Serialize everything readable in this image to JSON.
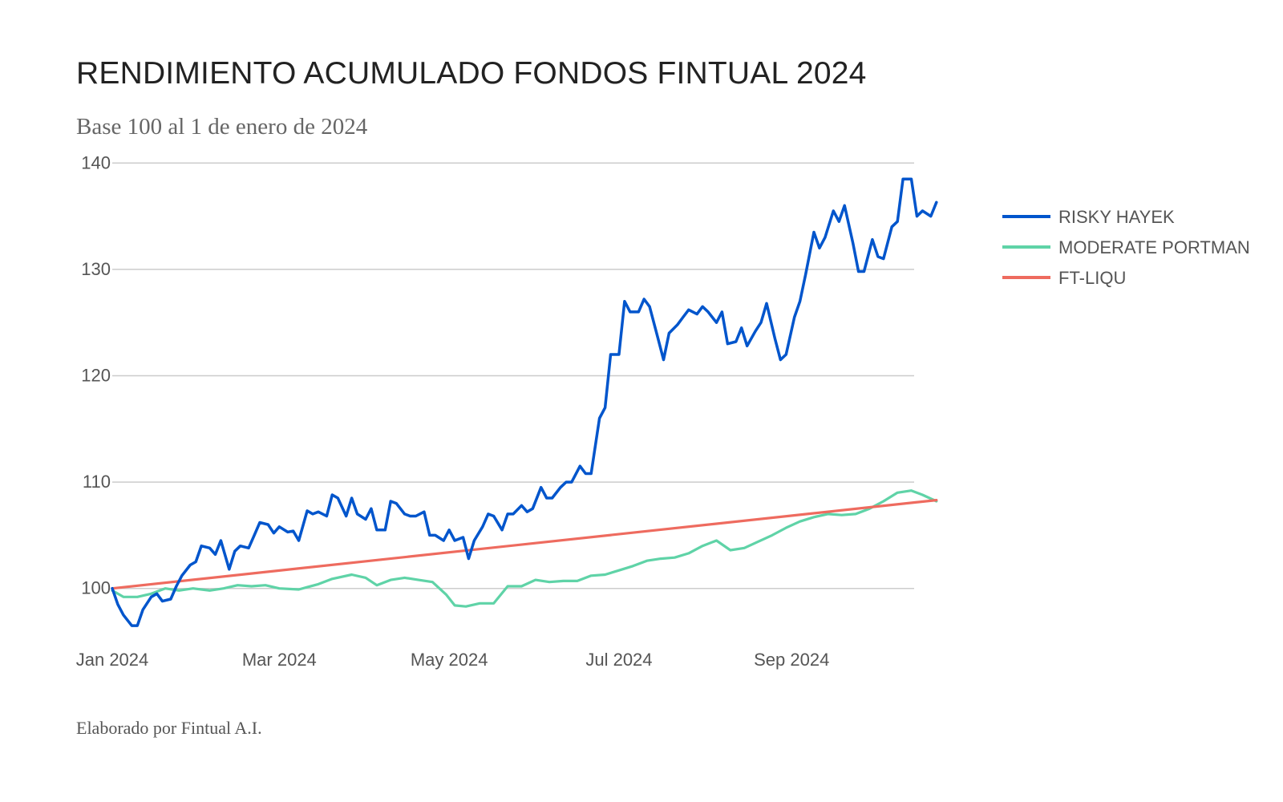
{
  "chart_data": {
    "type": "line",
    "title": "RENDIMIENTO ACUMULADO FONDOS FINTUAL 2024",
    "subtitle": "Base 100 al 1 de enero de 2024",
    "credit": "Elaborado por Fintual A.I.",
    "y_ticks": [
      100,
      110,
      120,
      130,
      140
    ],
    "ylim": [
      95,
      141
    ],
    "x_ticks": [
      {
        "date": "2024-01-01",
        "label": "Jan 2024"
      },
      {
        "date": "2024-03-01",
        "label": "Mar 2024"
      },
      {
        "date": "2024-05-01",
        "label": "May 2024"
      },
      {
        "date": "2024-07-01",
        "label": "Jul 2024"
      },
      {
        "date": "2024-09-01",
        "label": "Sep 2024"
      }
    ],
    "xlim": [
      "2024-01-01",
      "2024-10-15"
    ],
    "grid": true,
    "legend_position": "right",
    "series": [
      {
        "name": "RISKY HAYEK",
        "color": "#0055cc",
        "points": [
          [
            "2024-01-01",
            100.0
          ],
          [
            "2024-01-03",
            98.5
          ],
          [
            "2024-01-05",
            97.5
          ],
          [
            "2024-01-08",
            96.5
          ],
          [
            "2024-01-10",
            96.5
          ],
          [
            "2024-01-12",
            98.0
          ],
          [
            "2024-01-15",
            99.2
          ],
          [
            "2024-01-17",
            99.5
          ],
          [
            "2024-01-19",
            98.8
          ],
          [
            "2024-01-22",
            99.0
          ],
          [
            "2024-01-24",
            100.2
          ],
          [
            "2024-01-26",
            101.2
          ],
          [
            "2024-01-29",
            102.2
          ],
          [
            "2024-01-31",
            102.5
          ],
          [
            "2024-02-02",
            104.0
          ],
          [
            "2024-02-05",
            103.8
          ],
          [
            "2024-02-07",
            103.2
          ],
          [
            "2024-02-09",
            104.5
          ],
          [
            "2024-02-12",
            101.8
          ],
          [
            "2024-02-14",
            103.5
          ],
          [
            "2024-02-16",
            104.0
          ],
          [
            "2024-02-19",
            103.8
          ],
          [
            "2024-02-21",
            105.0
          ],
          [
            "2024-02-23",
            106.2
          ],
          [
            "2024-02-26",
            106.0
          ],
          [
            "2024-02-28",
            105.2
          ],
          [
            "2024-03-01",
            105.8
          ],
          [
            "2024-03-04",
            105.3
          ],
          [
            "2024-03-06",
            105.4
          ],
          [
            "2024-03-08",
            104.5
          ],
          [
            "2024-03-11",
            107.3
          ],
          [
            "2024-03-13",
            107.0
          ],
          [
            "2024-03-15",
            107.2
          ],
          [
            "2024-03-18",
            106.8
          ],
          [
            "2024-03-20",
            108.8
          ],
          [
            "2024-03-22",
            108.5
          ],
          [
            "2024-03-25",
            106.8
          ],
          [
            "2024-03-27",
            108.5
          ],
          [
            "2024-03-29",
            107.0
          ],
          [
            "2024-04-01",
            106.5
          ],
          [
            "2024-04-03",
            107.5
          ],
          [
            "2024-04-05",
            105.5
          ],
          [
            "2024-04-08",
            105.5
          ],
          [
            "2024-04-10",
            108.2
          ],
          [
            "2024-04-12",
            108.0
          ],
          [
            "2024-04-15",
            107.0
          ],
          [
            "2024-04-17",
            106.8
          ],
          [
            "2024-04-19",
            106.8
          ],
          [
            "2024-04-22",
            107.2
          ],
          [
            "2024-04-24",
            105.0
          ],
          [
            "2024-04-26",
            105.0
          ],
          [
            "2024-04-29",
            104.5
          ],
          [
            "2024-05-01",
            105.5
          ],
          [
            "2024-05-03",
            104.5
          ],
          [
            "2024-05-06",
            104.8
          ],
          [
            "2024-05-08",
            102.8
          ],
          [
            "2024-05-10",
            104.5
          ],
          [
            "2024-05-13",
            105.8
          ],
          [
            "2024-05-15",
            107.0
          ],
          [
            "2024-05-17",
            106.8
          ],
          [
            "2024-05-20",
            105.5
          ],
          [
            "2024-05-22",
            107.0
          ],
          [
            "2024-05-24",
            107.0
          ],
          [
            "2024-05-27",
            107.8
          ],
          [
            "2024-05-29",
            107.2
          ],
          [
            "2024-05-31",
            107.5
          ],
          [
            "2024-06-03",
            109.5
          ],
          [
            "2024-06-05",
            108.5
          ],
          [
            "2024-06-07",
            108.5
          ],
          [
            "2024-06-10",
            109.5
          ],
          [
            "2024-06-12",
            110.0
          ],
          [
            "2024-06-14",
            110.0
          ],
          [
            "2024-06-17",
            111.5
          ],
          [
            "2024-06-19",
            110.8
          ],
          [
            "2024-06-21",
            110.8
          ],
          [
            "2024-06-24",
            116.0
          ],
          [
            "2024-06-26",
            117.0
          ],
          [
            "2024-06-28",
            122.0
          ],
          [
            "2024-07-01",
            122.0
          ],
          [
            "2024-07-03",
            127.0
          ],
          [
            "2024-07-05",
            126.0
          ],
          [
            "2024-07-08",
            126.0
          ],
          [
            "2024-07-10",
            127.2
          ],
          [
            "2024-07-12",
            126.5
          ],
          [
            "2024-07-15",
            123.5
          ],
          [
            "2024-07-17",
            121.5
          ],
          [
            "2024-07-19",
            124.0
          ],
          [
            "2024-07-22",
            124.8
          ],
          [
            "2024-07-24",
            125.5
          ],
          [
            "2024-07-26",
            126.2
          ],
          [
            "2024-07-29",
            125.8
          ],
          [
            "2024-07-31",
            126.5
          ],
          [
            "2024-08-02",
            126.0
          ],
          [
            "2024-08-05",
            125.0
          ],
          [
            "2024-08-07",
            126.0
          ],
          [
            "2024-08-09",
            123.0
          ],
          [
            "2024-08-12",
            123.2
          ],
          [
            "2024-08-14",
            124.5
          ],
          [
            "2024-08-16",
            122.8
          ],
          [
            "2024-08-19",
            124.2
          ],
          [
            "2024-08-21",
            125.0
          ],
          [
            "2024-08-23",
            126.8
          ],
          [
            "2024-08-26",
            123.5
          ],
          [
            "2024-08-28",
            121.5
          ],
          [
            "2024-08-30",
            122.0
          ],
          [
            "2024-09-02",
            125.5
          ],
          [
            "2024-09-04",
            127.0
          ],
          [
            "2024-09-06",
            129.5
          ],
          [
            "2024-09-09",
            133.5
          ],
          [
            "2024-09-11",
            132.0
          ],
          [
            "2024-09-13",
            133.0
          ],
          [
            "2024-09-16",
            135.5
          ],
          [
            "2024-09-18",
            134.5
          ],
          [
            "2024-09-20",
            136.0
          ],
          [
            "2024-09-23",
            132.5
          ],
          [
            "2024-09-25",
            129.8
          ],
          [
            "2024-09-27",
            129.8
          ],
          [
            "2024-09-30",
            132.8
          ],
          [
            "2024-10-02",
            131.2
          ],
          [
            "2024-10-04",
            131.0
          ],
          [
            "2024-10-07",
            134.0
          ],
          [
            "2024-10-09",
            134.5
          ],
          [
            "2024-10-11",
            138.5
          ],
          [
            "2024-10-14",
            138.5
          ],
          [
            "2024-10-16",
            135.0
          ],
          [
            "2024-10-18",
            135.5
          ],
          [
            "2024-10-21",
            135.0
          ],
          [
            "2024-10-23",
            136.3
          ]
        ]
      },
      {
        "name": "MODERATE PORTMAN",
        "color": "#5fd3a7",
        "points": [
          [
            "2024-01-01",
            99.8
          ],
          [
            "2024-01-05",
            99.2
          ],
          [
            "2024-01-10",
            99.2
          ],
          [
            "2024-01-15",
            99.5
          ],
          [
            "2024-01-20",
            100.0
          ],
          [
            "2024-01-25",
            99.8
          ],
          [
            "2024-01-30",
            100.0
          ],
          [
            "2024-02-05",
            99.8
          ],
          [
            "2024-02-10",
            100.0
          ],
          [
            "2024-02-15",
            100.3
          ],
          [
            "2024-02-20",
            100.2
          ],
          [
            "2024-02-25",
            100.3
          ],
          [
            "2024-03-01",
            100.0
          ],
          [
            "2024-03-08",
            99.9
          ],
          [
            "2024-03-15",
            100.4
          ],
          [
            "2024-03-20",
            100.9
          ],
          [
            "2024-03-27",
            101.3
          ],
          [
            "2024-04-01",
            101.0
          ],
          [
            "2024-04-05",
            100.3
          ],
          [
            "2024-04-10",
            100.8
          ],
          [
            "2024-04-15",
            101.0
          ],
          [
            "2024-04-20",
            100.8
          ],
          [
            "2024-04-25",
            100.6
          ],
          [
            "2024-04-30",
            99.4
          ],
          [
            "2024-05-03",
            98.4
          ],
          [
            "2024-05-07",
            98.3
          ],
          [
            "2024-05-12",
            98.6
          ],
          [
            "2024-05-17",
            98.6
          ],
          [
            "2024-05-22",
            100.2
          ],
          [
            "2024-05-27",
            100.2
          ],
          [
            "2024-06-01",
            100.8
          ],
          [
            "2024-06-06",
            100.6
          ],
          [
            "2024-06-11",
            100.7
          ],
          [
            "2024-06-16",
            100.7
          ],
          [
            "2024-06-21",
            101.2
          ],
          [
            "2024-06-26",
            101.3
          ],
          [
            "2024-07-01",
            101.7
          ],
          [
            "2024-07-06",
            102.1
          ],
          [
            "2024-07-11",
            102.6
          ],
          [
            "2024-07-16",
            102.8
          ],
          [
            "2024-07-21",
            102.9
          ],
          [
            "2024-07-26",
            103.3
          ],
          [
            "2024-07-31",
            104.0
          ],
          [
            "2024-08-05",
            104.5
          ],
          [
            "2024-08-10",
            103.6
          ],
          [
            "2024-08-15",
            103.8
          ],
          [
            "2024-08-20",
            104.4
          ],
          [
            "2024-08-25",
            105.0
          ],
          [
            "2024-08-30",
            105.7
          ],
          [
            "2024-09-04",
            106.3
          ],
          [
            "2024-09-09",
            106.7
          ],
          [
            "2024-09-14",
            107.0
          ],
          [
            "2024-09-19",
            106.9
          ],
          [
            "2024-09-24",
            107.0
          ],
          [
            "2024-09-29",
            107.5
          ],
          [
            "2024-10-04",
            108.2
          ],
          [
            "2024-10-09",
            109.0
          ],
          [
            "2024-10-14",
            109.2
          ],
          [
            "2024-10-18",
            108.8
          ],
          [
            "2024-10-23",
            108.2
          ]
        ]
      },
      {
        "name": "FT-LIQU",
        "color": "#ee6b5f",
        "points": [
          [
            "2024-01-01",
            100.0
          ],
          [
            "2024-10-23",
            108.3
          ]
        ]
      }
    ]
  }
}
